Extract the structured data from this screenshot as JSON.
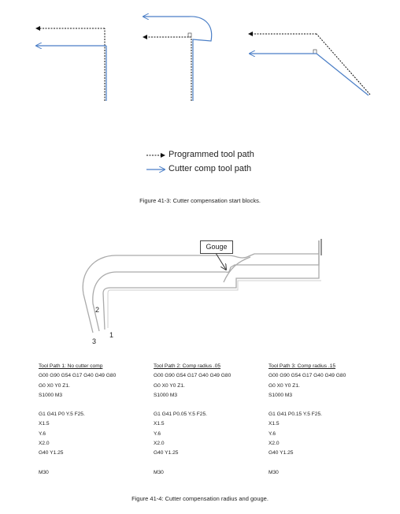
{
  "legend": {
    "programmed": "Programmed tool path",
    "cutter_comp": "Cutter comp tool path"
  },
  "figure_41_3_caption": "Figure 41-3: Cutter compensation start blocks.",
  "figure_41_4": {
    "gouge_label": "Gouge",
    "path_labels": [
      "1",
      "2",
      "3"
    ],
    "caption": "Figure 41-4: Cutter compensation radius and gouge."
  },
  "tool_paths": [
    {
      "title": "Tool Path 1: No cutter comp",
      "setup": [
        "G00 G90 G54 G17 G40 G49 G80",
        "G0 X0 Y0 Z1.",
        "S1000 M3"
      ],
      "moves": [
        "G1 G41 P0 Y.5 F25.",
        "X1.5",
        "Y.6",
        "X2.0",
        "G40 Y1.25"
      ],
      "end": "M30"
    },
    {
      "title": "Tool Path 2: Comp radius .05",
      "setup": [
        "G00 G90 G54 G17 G40 G49 G80",
        "G0 X0 Y0 Z1.",
        "S1000 M3"
      ],
      "moves": [
        "G1 G41 P0.05 Y.5 F25.",
        "X1.5",
        "Y.6",
        "X2.0",
        "G40 Y1.25"
      ],
      "end": "M30"
    },
    {
      "title": "Tool Path 3: Comp radius .15",
      "setup": [
        "G00 G90 G54 G17 G40 G49 G80",
        "G0 X0 Y0 Z1.",
        "S1000 M3"
      ],
      "moves": [
        "G1 G41 P0.15 Y.5 F25.",
        "X1.5",
        "Y.6",
        "X2.0",
        "G40 Y1.25"
      ],
      "end": "M30"
    }
  ],
  "colors": {
    "programmed": "#111111",
    "cutter_comp": "#4a7ec6",
    "part": "#aaaaaa"
  }
}
